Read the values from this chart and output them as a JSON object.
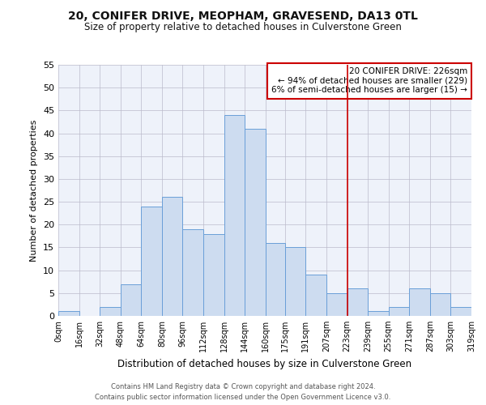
{
  "title": "20, CONIFER DRIVE, MEOPHAM, GRAVESEND, DA13 0TL",
  "subtitle": "Size of property relative to detached houses in Culverstone Green",
  "xlabel": "Distribution of detached houses by size in Culverstone Green",
  "ylabel": "Number of detached properties",
  "bar_heights": [
    1,
    0,
    2,
    7,
    24,
    26,
    19,
    18,
    44,
    41,
    16,
    15,
    9,
    5,
    6,
    1,
    2,
    6,
    5,
    2
  ],
  "bin_edges": [
    0,
    16,
    32,
    48,
    64,
    80,
    96,
    112,
    128,
    144,
    160,
    175,
    191,
    207,
    223,
    239,
    255,
    271,
    287,
    303,
    319
  ],
  "tick_labels": [
    "0sqm",
    "16sqm",
    "32sqm",
    "48sqm",
    "64sqm",
    "80sqm",
    "96sqm",
    "112sqm",
    "128sqm",
    "144sqm",
    "160sqm",
    "175sqm",
    "191sqm",
    "207sqm",
    "223sqm",
    "239sqm",
    "255sqm",
    "271sqm",
    "287sqm",
    "303sqm",
    "319sqm"
  ],
  "bar_color": "#cddcf0",
  "bar_edge_color": "#6a9fd8",
  "bar_linewidth": 0.7,
  "vline_x": 223,
  "vline_color": "#cc0000",
  "ylim": [
    0,
    55
  ],
  "yticks": [
    0,
    5,
    10,
    15,
    20,
    25,
    30,
    35,
    40,
    45,
    50,
    55
  ],
  "grid_color": "#bbbbcc",
  "bg_color": "#eef2fa",
  "annotation_title": "20 CONIFER DRIVE: 226sqm",
  "annotation_line1": "← 94% of detached houses are smaller (229)",
  "annotation_line2": "6% of semi-detached houses are larger (15) →",
  "annotation_box_color": "#cc0000",
  "footer1": "Contains HM Land Registry data © Crown copyright and database right 2024.",
  "footer2": "Contains public sector information licensed under the Open Government Licence v3.0."
}
